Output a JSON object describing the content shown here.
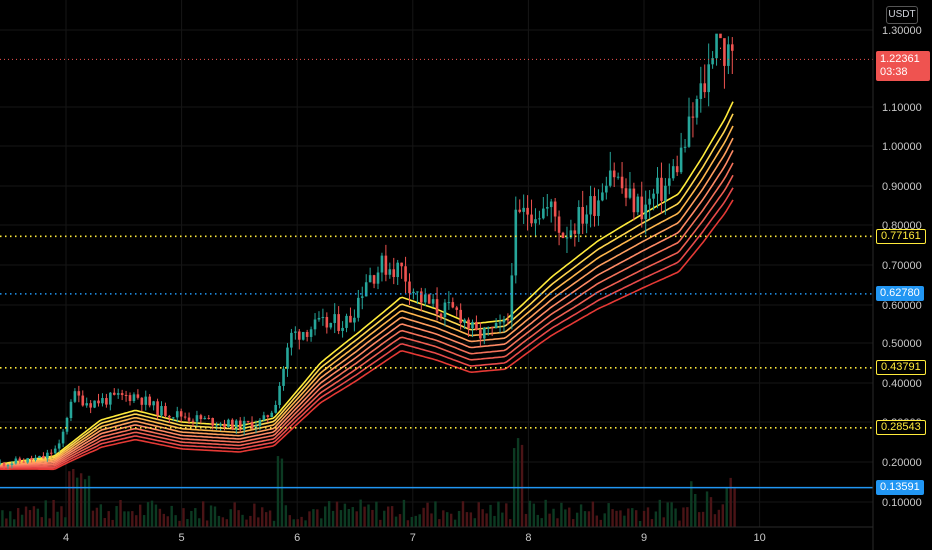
{
  "quote_currency": "USDT",
  "price_axis": {
    "labels": [
      {
        "text": "1.30000",
        "v": 1.3
      },
      {
        "text": "1.10000",
        "v": 1.1
      },
      {
        "text": "1.00000",
        "v": 1.0
      },
      {
        "text": "0.90000",
        "v": 0.9
      },
      {
        "text": "0.80000",
        "v": 0.8
      },
      {
        "text": "0.70000",
        "v": 0.7
      },
      {
        "text": "0.60000",
        "v": 0.6
      },
      {
        "text": "0.50000",
        "v": 0.5
      },
      {
        "text": "0.40000",
        "v": 0.4
      },
      {
        "text": "0.30000",
        "v": 0.3
      },
      {
        "text": "0.20000",
        "v": 0.2
      },
      {
        "text": "0.10000",
        "v": 0.1
      }
    ]
  },
  "time_axis": {
    "labels": [
      "4",
      "5",
      "6",
      "7",
      "8",
      "9",
      "10"
    ]
  },
  "current_price": {
    "value": "1.22361",
    "countdown": "03:38",
    "color": "#ef5350"
  },
  "horizontal_lines": [
    {
      "label": "0.77161",
      "v": 0.77161,
      "color": "#ffeb3b",
      "style": "dotted"
    },
    {
      "label": "0.62780",
      "v": 0.6278,
      "color": "#2196f3",
      "style": "dotted"
    },
    {
      "label": "0.43791",
      "v": 0.43791,
      "color": "#ffeb3b",
      "style": "dotted"
    },
    {
      "label": "0.28543",
      "v": 0.28543,
      "color": "#ffeb3b",
      "style": "dotted"
    },
    {
      "label": "0.13591",
      "v": 0.13591,
      "color": "#2196f3",
      "style": "solid"
    }
  ],
  "colors": {
    "up": "#26a69a",
    "down": "#ef5350",
    "ribbon_top": "#ffeb3b",
    "ribbon_bottom": "#e53935"
  },
  "chart_data": {
    "type": "candlestick",
    "x_range": [
      3.43,
      9.9
    ],
    "price_range": [
      0.07,
      1.38
    ],
    "ribbon_anchors": [
      [
        3.43,
        0.195
      ],
      [
        3.9,
        0.215
      ],
      [
        4.3,
        0.305
      ],
      [
        4.6,
        0.33
      ],
      [
        5.0,
        0.3
      ],
      [
        5.5,
        0.29
      ],
      [
        5.8,
        0.31
      ],
      [
        6.2,
        0.45
      ],
      [
        6.5,
        0.52
      ],
      [
        6.9,
        0.62
      ],
      [
        7.2,
        0.59
      ],
      [
        7.5,
        0.55
      ],
      [
        7.8,
        0.56
      ],
      [
        8.2,
        0.67
      ],
      [
        8.6,
        0.76
      ],
      [
        9.0,
        0.83
      ],
      [
        9.3,
        0.88
      ],
      [
        9.5,
        0.97
      ],
      [
        9.7,
        1.07
      ],
      [
        9.78,
        1.12
      ]
    ],
    "price_anchors": [
      [
        3.43,
        0.195
      ],
      [
        3.8,
        0.21
      ],
      [
        3.95,
        0.24
      ],
      [
        4.05,
        0.37
      ],
      [
        4.2,
        0.35
      ],
      [
        4.4,
        0.36
      ],
      [
        4.6,
        0.37
      ],
      [
        4.8,
        0.33
      ],
      [
        5.1,
        0.31
      ],
      [
        5.5,
        0.29
      ],
      [
        5.7,
        0.3
      ],
      [
        5.8,
        0.34
      ],
      [
        5.95,
        0.52
      ],
      [
        6.1,
        0.54
      ],
      [
        6.3,
        0.55
      ],
      [
        6.45,
        0.56
      ],
      [
        6.6,
        0.67
      ],
      [
        6.75,
        0.7
      ],
      [
        6.9,
        0.69
      ],
      [
        7.05,
        0.62
      ],
      [
        7.2,
        0.59
      ],
      [
        7.4,
        0.58
      ],
      [
        7.55,
        0.52
      ],
      [
        7.7,
        0.53
      ],
      [
        7.82,
        0.55
      ],
      [
        7.88,
        0.8
      ],
      [
        8.0,
        0.84
      ],
      [
        8.2,
        0.84
      ],
      [
        8.3,
        0.78
      ],
      [
        8.45,
        0.82
      ],
      [
        8.6,
        0.87
      ],
      [
        8.7,
        0.96
      ],
      [
        8.85,
        0.87
      ],
      [
        9.0,
        0.84
      ],
      [
        9.1,
        0.88
      ],
      [
        9.2,
        0.9
      ],
      [
        9.35,
        1.0
      ],
      [
        9.45,
        1.1
      ],
      [
        9.55,
        1.18
      ],
      [
        9.62,
        1.32
      ],
      [
        9.7,
        1.23
      ],
      [
        9.78,
        1.22
      ]
    ]
  }
}
